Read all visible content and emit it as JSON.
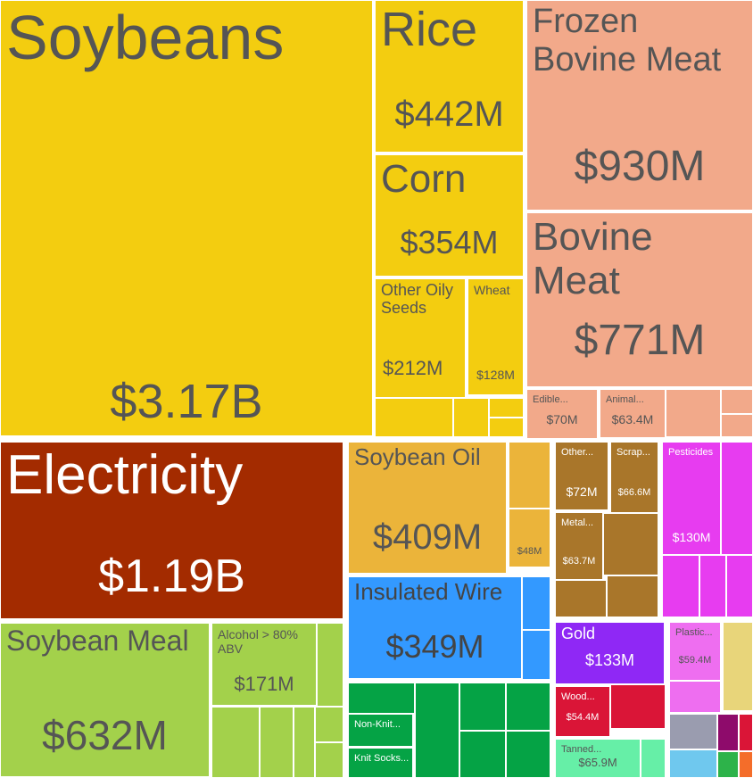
{
  "chart_data": {
    "type": "treemap",
    "categories": [
      "Soybeans",
      "Rice",
      "Corn",
      "Other Oily Seeds",
      "Wheat",
      "Frozen Bovine Meat",
      "Bovine Meat",
      "Edible...",
      "Animal...",
      "Electricity",
      "Soybean Meal",
      "Alcohol > 80% ABV",
      "Soybean Oil",
      null,
      "Insulated Wire",
      "Non-Knit...",
      "Knit Socks...",
      "Other...",
      "Scrap...",
      "Metal...",
      "Pesticides",
      "Gold",
      "Plastic...",
      "Wood...",
      "Tanned..."
    ],
    "values": [
      3170000000,
      442000000,
      354000000,
      212000000,
      128000000,
      930000000,
      771000000,
      70000000,
      63400000,
      1190000000,
      632000000,
      171000000,
      409000000,
      48000000,
      349000000,
      42000000,
      39000000,
      72000000,
      66600000,
      63700000,
      130000000,
      133000000,
      59400000,
      54400000,
      65900000
    ],
    "value_labels": [
      "$3.17B",
      "$442M",
      "$354M",
      "$212M",
      "$128M",
      "$930M",
      "$771M",
      "$70M",
      "$63.4M",
      "$1.19B",
      "$632M",
      "$171M",
      "$409M",
      "$48M",
      "$349M",
      null,
      null,
      "$72M",
      "$66.6M",
      "$63.7M",
      "$130M",
      "$133M",
      "$59.4M",
      "$54.4M",
      "$65.9M"
    ],
    "colors": [
      "#F3CD10",
      "#F3CD10",
      "#F3CD10",
      "#F3CD10",
      "#F3CD10",
      "#F2A98A",
      "#F2A98A",
      "#F2A98A",
      "#F2A98A",
      "#A32B00",
      "#A3D14B",
      "#A3D14B",
      "#EBB43A",
      "#EBB43A",
      "#3399FF",
      "#05A345",
      "#05A345",
      "#A9762A",
      "#A9762A",
      "#A9762A",
      "#E73CF0",
      "#8F28F5",
      "#EE6EF0",
      "#DA1537",
      "#66EFA7"
    ]
  }
}
